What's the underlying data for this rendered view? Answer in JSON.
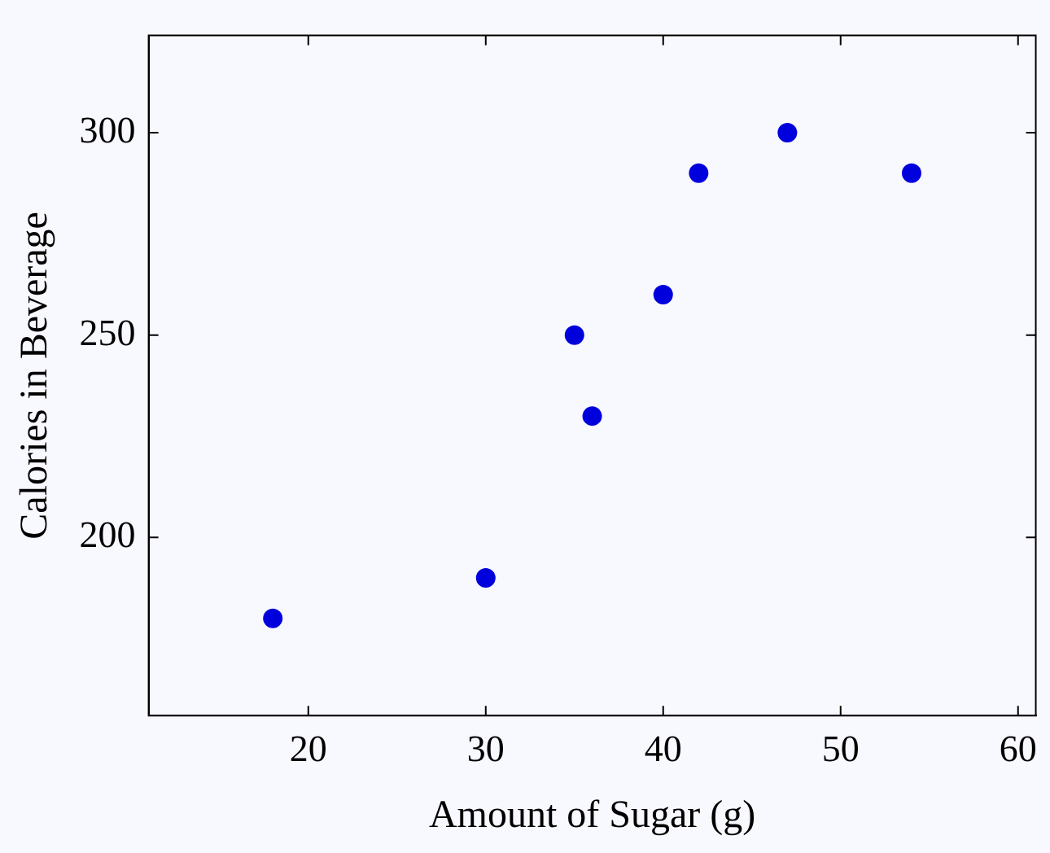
{
  "chart_data": {
    "type": "scatter",
    "xlabel": "Amount of Sugar (g)",
    "ylabel": "Calories in Beverage",
    "x": [
      18,
      30,
      35,
      36,
      40,
      42,
      47,
      54
    ],
    "series": [
      {
        "color": "#0000dd",
        "values": [
          180,
          190,
          250,
          230,
          260,
          290,
          300,
          290
        ]
      }
    ],
    "xlim": [
      11,
      61
    ],
    "xticks": [
      20,
      30,
      40,
      50,
      60
    ],
    "ylim": [
      156,
      324
    ],
    "yticks": [
      200,
      250,
      300
    ],
    "marker": "circle",
    "grid": false,
    "legend": false
  }
}
